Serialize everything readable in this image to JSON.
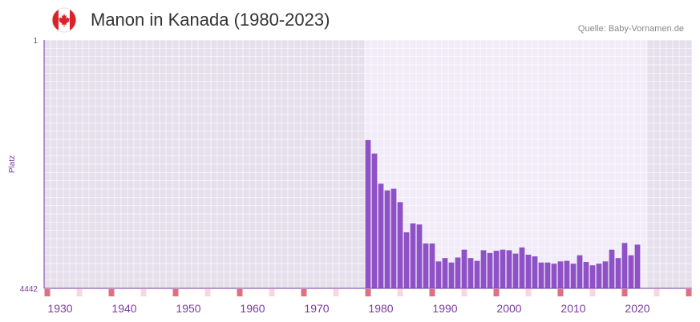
{
  "header": {
    "title": "Manon in Kanada (1980-2023)",
    "source": "Quelle: Baby-Vornamen.de",
    "flag_icon": "canada-flag-icon"
  },
  "colors": {
    "bar": "#8e52c6",
    "bg_dark": "#e5e0ec",
    "bg_light": "#f1ecf8",
    "axis": "#7a3aa0",
    "tick_label": "#7a3aa0",
    "strip_major": "#e07080",
    "strip_minor": "#f8d8e0",
    "flag_red": "#d8232a"
  },
  "chart_data": {
    "type": "bar",
    "title": "Manon in Kanada (1980-2023)",
    "xlabel": "",
    "ylabel": "Platz",
    "y_reversed": true,
    "ylim": [
      1,
      4442
    ],
    "ytick_labels": [
      "1",
      "4442"
    ],
    "x_range": [
      1928,
      2029
    ],
    "xtick_labels": [
      "1930",
      "1940",
      "1950",
      "1960",
      "1970",
      "1980",
      "1990",
      "2000",
      "2010",
      "2020"
    ],
    "highlight_range": [
      1978,
      2021
    ],
    "categories": [
      1978,
      1979,
      1980,
      1981,
      1982,
      1983,
      1984,
      1985,
      1986,
      1987,
      1988,
      1989,
      1990,
      1991,
      1992,
      1993,
      1994,
      1995,
      1996,
      1997,
      1998,
      1999,
      2000,
      2001,
      2002,
      2003,
      2004,
      2005,
      2006,
      2007,
      2008,
      2009,
      2010,
      2011,
      2012,
      2013,
      2014,
      2015,
      2016,
      2017,
      2018,
      2019,
      2020,
      2021
    ],
    "values": [
      1790,
      2030,
      2570,
      2690,
      2660,
      2900,
      3440,
      3280,
      3300,
      3640,
      3640,
      3960,
      3900,
      3980,
      3890,
      3750,
      3900,
      3950,
      3760,
      3810,
      3770,
      3750,
      3760,
      3820,
      3710,
      3840,
      3870,
      3980,
      3980,
      4000,
      3960,
      3950,
      4000,
      3850,
      3970,
      4030,
      4000,
      3960,
      3750,
      3900,
      3630,
      3850,
      3660,
      0
    ]
  }
}
